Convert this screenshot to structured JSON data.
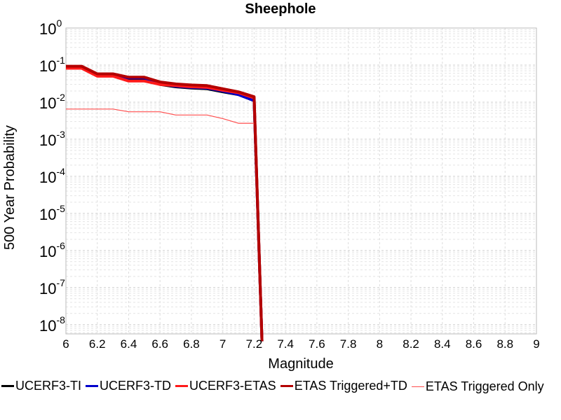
{
  "chart_data": {
    "type": "line",
    "title": "Sheephole",
    "xlabel": "Magnitude",
    "ylabel": "500 Year Probability",
    "xlim": [
      6,
      9
    ],
    "ylim_log10": [
      -8.25,
      0
    ],
    "x_ticks": [
      "6",
      "6.2",
      "6.4",
      "6.6",
      "6.8",
      "7",
      "7.2",
      "7.4",
      "7.6",
      "7.8",
      "8",
      "8.2",
      "8.4",
      "8.6",
      "8.8",
      "9"
    ],
    "y_ticks": [
      {
        "base": "10",
        "exp": "0"
      },
      {
        "base": "10",
        "exp": "-1"
      },
      {
        "base": "10",
        "exp": "-2"
      },
      {
        "base": "10",
        "exp": "-3"
      },
      {
        "base": "10",
        "exp": "-4"
      },
      {
        "base": "10",
        "exp": "-5"
      },
      {
        "base": "10",
        "exp": "-6"
      },
      {
        "base": "10",
        "exp": "-7"
      },
      {
        "base": "10",
        "exp": "-8"
      }
    ],
    "grid": true,
    "y_scale": "log",
    "legend_position": "bottom",
    "series": [
      {
        "name": "UCERF3-TI",
        "color": "#000000",
        "linewidth": "thick",
        "x": [
          6.0,
          6.1,
          6.2,
          6.3,
          6.4,
          6.5,
          6.6,
          6.7,
          6.8,
          6.9,
          7.0,
          7.1,
          7.2,
          7.25
        ],
        "y": [
          0.088,
          0.088,
          0.055,
          0.055,
          0.043,
          0.043,
          0.03,
          0.026,
          0.024,
          0.023,
          0.019,
          0.016,
          0.011,
          1e-09
        ]
      },
      {
        "name": "UCERF3-TD",
        "color": "#0000cc",
        "linewidth": "thick",
        "x": [
          6.0,
          6.1,
          6.2,
          6.3,
          6.4,
          6.5,
          6.6,
          6.7,
          6.8,
          6.9,
          7.0,
          7.1,
          7.2,
          7.25
        ],
        "y": [
          0.09,
          0.09,
          0.056,
          0.056,
          0.045,
          0.045,
          0.031,
          0.027,
          0.025,
          0.024,
          0.02,
          0.016,
          0.011,
          1e-09
        ]
      },
      {
        "name": "UCERF3-ETAS",
        "color": "#ff1a1a",
        "linewidth": "thick",
        "x": [
          6.0,
          6.1,
          6.2,
          6.3,
          6.4,
          6.5,
          6.6,
          6.7,
          6.8,
          6.9,
          7.0,
          7.1,
          7.2,
          7.25
        ],
        "y": [
          0.082,
          0.082,
          0.05,
          0.05,
          0.037,
          0.037,
          0.03,
          0.028,
          0.026,
          0.025,
          0.021,
          0.018,
          0.013,
          1e-09
        ]
      },
      {
        "name": "ETAS Triggered+TD",
        "color": "#b30000",
        "linewidth": "thick",
        "x": [
          6.0,
          6.1,
          6.2,
          6.3,
          6.4,
          6.5,
          6.6,
          6.7,
          6.8,
          6.9,
          7.0,
          7.1,
          7.2,
          7.25
        ],
        "y": [
          0.093,
          0.093,
          0.058,
          0.058,
          0.047,
          0.047,
          0.035,
          0.031,
          0.029,
          0.028,
          0.023,
          0.019,
          0.014,
          1e-09
        ]
      },
      {
        "name": "ETAS Triggered Only",
        "color": "#ff4d4d",
        "linewidth": "thin",
        "x": [
          6.0,
          6.1,
          6.2,
          6.3,
          6.4,
          6.5,
          6.6,
          6.7,
          6.8,
          6.9,
          7.0,
          7.1,
          7.2
        ],
        "y": [
          0.0065,
          0.0065,
          0.0065,
          0.0065,
          0.0055,
          0.0055,
          0.0055,
          0.0045,
          0.0045,
          0.0045,
          0.0036,
          0.0027,
          0.0027
        ]
      }
    ]
  }
}
